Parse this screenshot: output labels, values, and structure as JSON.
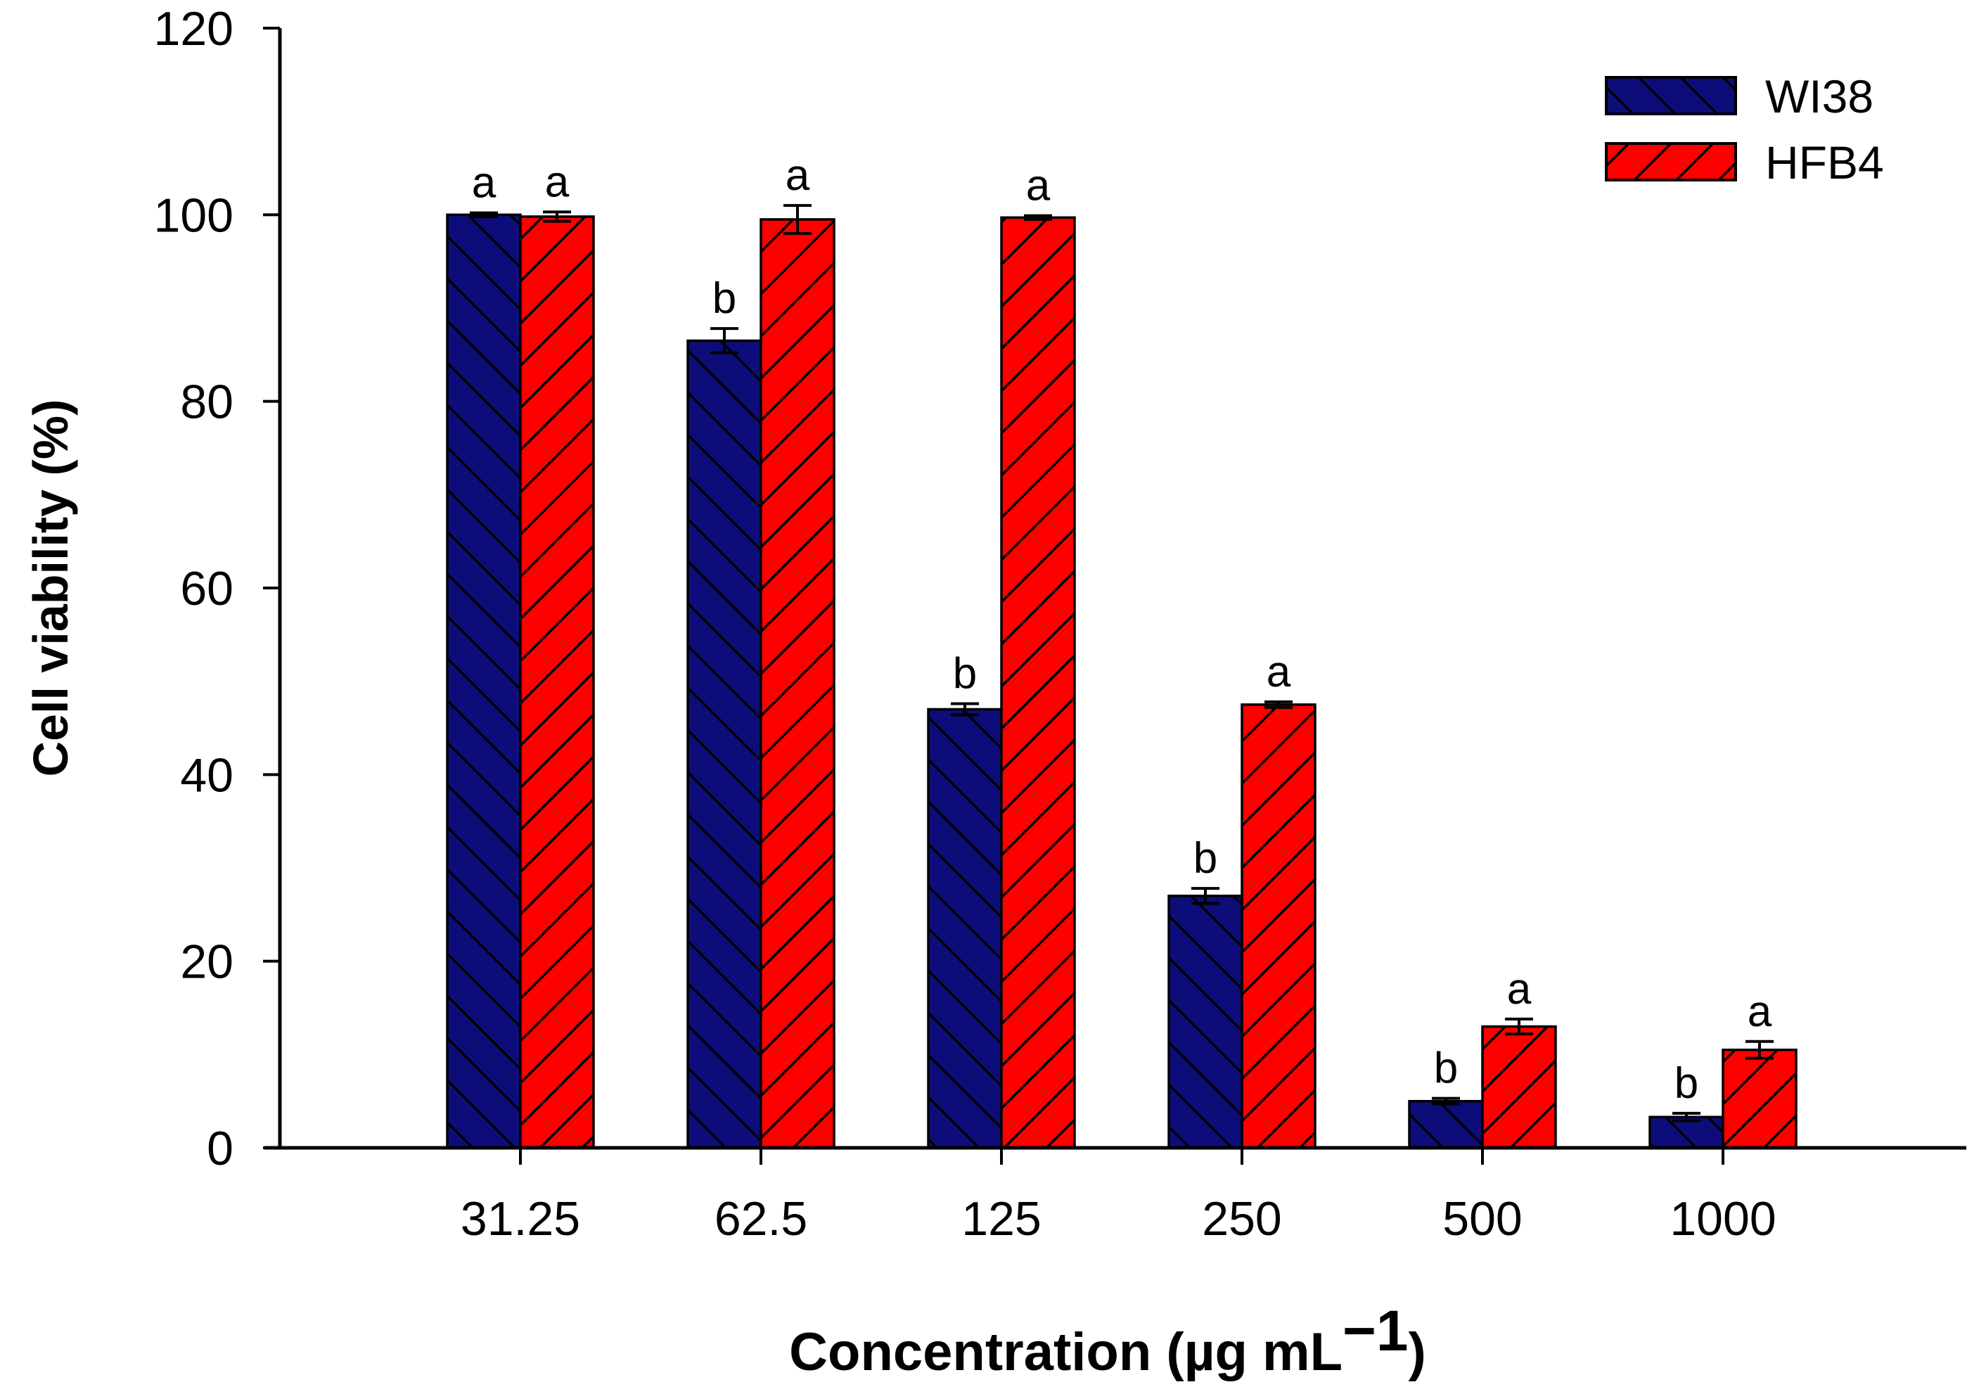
{
  "chart_data": {
    "type": "bar",
    "categories": [
      "31.25",
      "62.5",
      "125",
      "250",
      "500",
      "1000"
    ],
    "series": [
      {
        "name": "WI38",
        "values": [
          100,
          86.5,
          47,
          27,
          5,
          3.3
        ],
        "errors": [
          0.2,
          1.3,
          0.6,
          0.8,
          0.3,
          0.4
        ],
        "labels": [
          "a",
          "b",
          "b",
          "b",
          "b",
          "b"
        ],
        "color": "#0d0d7a",
        "hatch": "backslash"
      },
      {
        "name": "HFB4",
        "values": [
          99.8,
          99.5,
          99.7,
          47.5,
          13,
          10.5
        ],
        "errors": [
          0.5,
          1.5,
          0.2,
          0.3,
          0.8,
          0.9
        ],
        "labels": [
          "a",
          "a",
          "a",
          "a",
          "a",
          "a"
        ],
        "color": "#ff0000",
        "hatch": "slash"
      }
    ],
    "ylim": [
      0,
      120
    ],
    "yticks": [
      "0",
      "20",
      "40",
      "60",
      "80",
      "100",
      "120"
    ],
    "xlabel": "Concentration (µg mL",
    "xlabel_superscript": "−1",
    "xlabel_suffix": ")",
    "ylabel": "Cell viability (%)",
    "legend_position": "top-right",
    "grid": false
  }
}
